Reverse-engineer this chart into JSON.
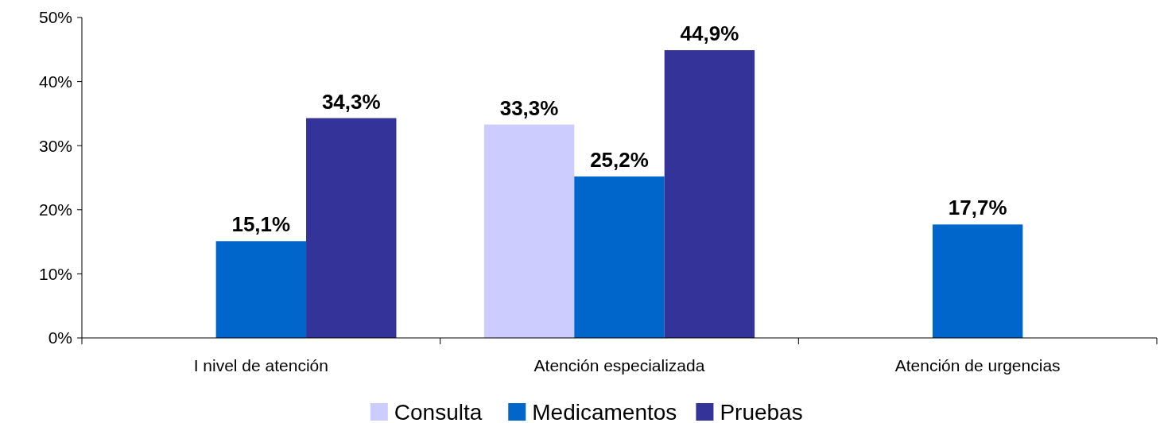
{
  "chart_data": {
    "type": "bar",
    "categories": [
      "I nivel de atención",
      "Atención especializada",
      "Atención de urgencias"
    ],
    "series": [
      {
        "name": "Consulta",
        "color": "#ccccff",
        "values": [
          null,
          33.3,
          null
        ],
        "value_labels": [
          null,
          "33,3%",
          null
        ]
      },
      {
        "name": "Medicamentos",
        "color": "#0066cc",
        "values": [
          15.1,
          25.2,
          17.7
        ],
        "value_labels": [
          "15,1%",
          "25,2%",
          "17,7%"
        ]
      },
      {
        "name": "Pruebas",
        "color": "#333399",
        "values": [
          34.3,
          44.9,
          null
        ],
        "value_labels": [
          "34,3%",
          "44,9%",
          null
        ]
      }
    ],
    "ylim": [
      0,
      50
    ],
    "yticks": [
      {
        "value": 0,
        "label": "0%"
      },
      {
        "value": 10,
        "label": "10%"
      },
      {
        "value": 20,
        "label": "20%"
      },
      {
        "value": 30,
        "label": "30%"
      },
      {
        "value": 40,
        "label": "40%"
      },
      {
        "value": 50,
        "label": "50%"
      }
    ],
    "grid": false,
    "legend": "bottom"
  }
}
